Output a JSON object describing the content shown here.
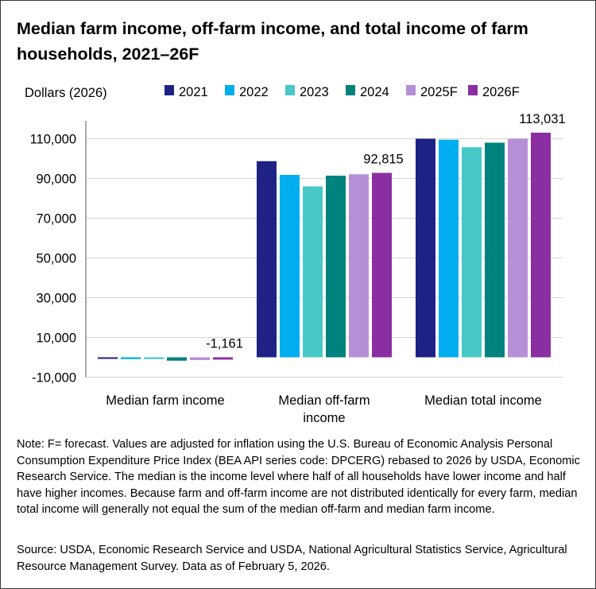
{
  "title": "Median farm income, off-farm income, and total income of farm households, 2021–26F",
  "note": "Note: F= forecast. Values are adjusted for inflation using the U.S. Bureau of Economic Analysis Personal Consumption Expenditure Price Index (BEA API series code: DPCERG) rebased to 2026 by USDA, Economic Research Service. The median is the income level where half of all households have lower income and half have higher incomes. Because farm and off-farm income are not distributed identically for every farm, median total income will generally not equal the sum of the median off-farm and median farm income.",
  "source": "Source: USDA, Economic Research Service and USDA, National Agricultural Statistics Service, Agricultural Resource Management Survey.  Data as of February 5, 2026.",
  "chart_data": {
    "type": "bar",
    "ylabel": "Dollars (2026)",
    "ylim": [
      -10000,
      120000
    ],
    "yticks": [
      -10000,
      10000,
      30000,
      50000,
      70000,
      90000,
      110000
    ],
    "ytick_labels": [
      "-10,000",
      "10,000",
      "30,000",
      "50,000",
      "70,000",
      "90,000",
      "110,000"
    ],
    "grid": true,
    "legend_position": "top",
    "categories": [
      "Median farm income",
      "Median off-farm income",
      "Median total income"
    ],
    "series": [
      {
        "name": "2021",
        "color": "#1f2285",
        "values": [
          -800,
          98700,
          110000
        ]
      },
      {
        "name": "2022",
        "color": "#00aeef",
        "values": [
          -900,
          91800,
          109500
        ]
      },
      {
        "name": "2023",
        "color": "#48c8c8",
        "values": [
          -900,
          86000,
          105700
        ]
      },
      {
        "name": "2024",
        "color": "#00827e",
        "values": [
          -1700,
          91400,
          108000
        ]
      },
      {
        "name": "2025F",
        "color": "#b690d6",
        "values": [
          -1400,
          92100,
          110000
        ]
      },
      {
        "name": "2026F",
        "color": "#8b2ea1",
        "values": [
          -1161,
          92815,
          113031
        ]
      }
    ],
    "data_labels": [
      {
        "category": "Median farm income",
        "series": "2026F",
        "text": "-1,161"
      },
      {
        "category": "Median off-farm income",
        "series": "2026F",
        "text": "92,815"
      },
      {
        "category": "Median total income",
        "series": "2026F",
        "text": "113,031"
      }
    ]
  }
}
